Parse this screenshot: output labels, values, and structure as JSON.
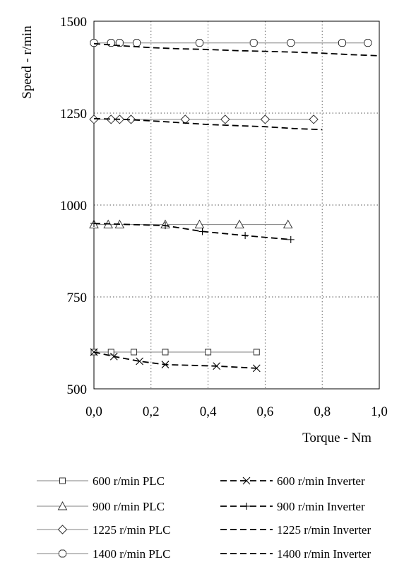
{
  "chart_data": {
    "type": "line",
    "title": "",
    "xlabel": "Torque - Nm",
    "ylabel": "Speed - r/min",
    "xlim": [
      0,
      1
    ],
    "ylim": [
      500,
      1500
    ],
    "x_ticks": [
      "0,0",
      "0,2",
      "0,4",
      "0,6",
      "0,8",
      "1,0"
    ],
    "x_tick_values": [
      0,
      0.2,
      0.4,
      0.6,
      0.8,
      1.0
    ],
    "y_ticks": [
      "500",
      "750",
      "1000",
      "1250",
      "1500"
    ],
    "y_tick_values": [
      500,
      750,
      1000,
      1250,
      1500
    ],
    "grid": "dotted",
    "legend_placement": "bottom",
    "series": [
      {
        "name": "600 r/min PLC",
        "marker": "square",
        "line": "solid",
        "color": "#808080",
        "x": [
          0.0,
          0.06,
          0.14,
          0.25,
          0.4,
          0.57
        ],
        "y": [
          600,
          600,
          600,
          600,
          600,
          600
        ]
      },
      {
        "name": "900 r/min PLC",
        "marker": "triangle",
        "line": "solid",
        "color": "#808080",
        "x": [
          0.0,
          0.05,
          0.09,
          0.25,
          0.37,
          0.51,
          0.68
        ],
        "y": [
          947,
          947,
          947,
          947,
          947,
          947,
          947
        ]
      },
      {
        "name": "1225 r/min PLC",
        "marker": "diamond",
        "line": "solid",
        "color": "#808080",
        "x": [
          0.0,
          0.06,
          0.09,
          0.13,
          0.32,
          0.46,
          0.6,
          0.77
        ],
        "y": [
          1233,
          1233,
          1233,
          1233,
          1233,
          1233,
          1233,
          1233
        ]
      },
      {
        "name": "1400 r/min PLC",
        "marker": "octagon",
        "line": "solid",
        "color": "#808080",
        "x": [
          0.0,
          0.06,
          0.09,
          0.15,
          0.37,
          0.56,
          0.69,
          0.87,
          0.96
        ],
        "y": [
          1441,
          1441,
          1441,
          1441,
          1441,
          1441,
          1441,
          1441,
          1441
        ]
      },
      {
        "name": "600 r/min Inverter",
        "marker": "x",
        "line": "dashed",
        "color": "#000000",
        "x": [
          0.0,
          0.07,
          0.16,
          0.25,
          0.43,
          0.57
        ],
        "y": [
          600,
          588,
          575,
          566,
          562,
          556
        ]
      },
      {
        "name": "900 r/min Inverter",
        "marker": "plus",
        "line": "dashed",
        "color": "#000000",
        "x": [
          0.0,
          0.25,
          0.38,
          0.53,
          0.69
        ],
        "y": [
          950,
          944,
          928,
          917,
          906
        ]
      },
      {
        "name": "1225 r/min Inverter",
        "marker": "none",
        "line": "dashed",
        "color": "#000000",
        "x": [
          0.0,
          0.1,
          0.2,
          0.3,
          0.4,
          0.5,
          0.6,
          0.7,
          0.8
        ],
        "y": [
          1235,
          1233,
          1229,
          1224,
          1219,
          1216,
          1213,
          1208,
          1205
        ]
      },
      {
        "name": "1400 r/min Inverter",
        "marker": "none",
        "line": "dashed",
        "color": "#000000",
        "x": [
          0.0,
          0.1,
          0.2,
          0.3,
          0.4,
          0.5,
          0.6,
          0.7,
          0.8,
          0.9,
          1.0
        ],
        "y": [
          1439,
          1433,
          1428,
          1425,
          1423,
          1420,
          1418,
          1416,
          1413,
          1409,
          1406
        ]
      }
    ]
  }
}
